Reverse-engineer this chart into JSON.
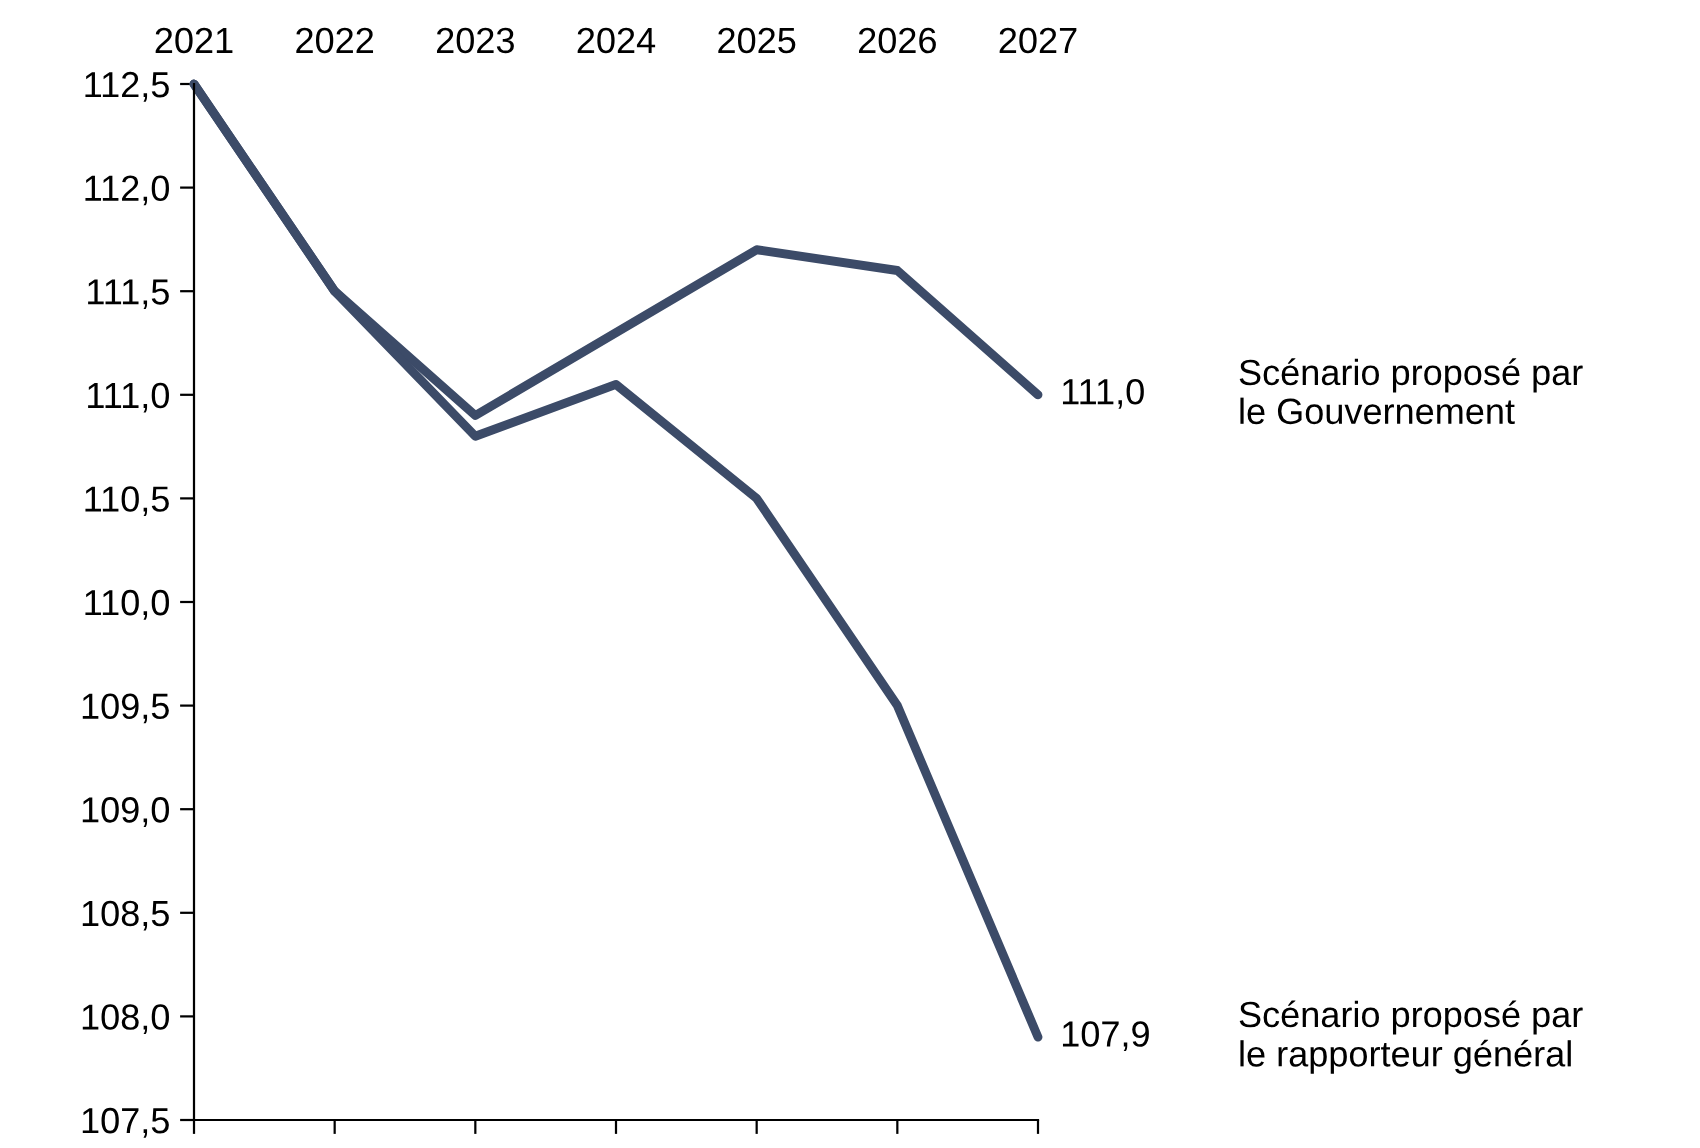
{
  "chart_data": {
    "type": "line",
    "categories": [
      "2021",
      "2022",
      "2023",
      "2024",
      "2025",
      "2026",
      "2027"
    ],
    "series": [
      {
        "name": "Scénario proposé par\nle Gouvernement",
        "color": "#3c4b68",
        "values": [
          112.5,
          111.5,
          110.9,
          111.3,
          111.7,
          111.6,
          111.0
        ],
        "value_labels": [
          null,
          null,
          null,
          null,
          null,
          null,
          "111,0"
        ]
      },
      {
        "name": "Scénario proposé par\nle rapporteur général",
        "color": "#3c4b68",
        "values": [
          112.5,
          111.5,
          110.8,
          111.05,
          110.5,
          109.5,
          107.9
        ],
        "value_labels": [
          null,
          null,
          null,
          null,
          null,
          null,
          "107,9"
        ]
      }
    ],
    "ylim": [
      107.5,
      112.5
    ],
    "yticks": [
      {
        "value": 107.5,
        "label": "107,5"
      },
      {
        "value": 108.0,
        "label": "108,0"
      },
      {
        "value": 108.5,
        "label": "108,5"
      },
      {
        "value": 109.0,
        "label": "109,0"
      },
      {
        "value": 109.5,
        "label": "109,5"
      },
      {
        "value": 110.0,
        "label": "110,0"
      },
      {
        "value": 110.5,
        "label": "110,5"
      },
      {
        "value": 111.0,
        "label": "111,0"
      },
      {
        "value": 111.5,
        "label": "111,5"
      },
      {
        "value": 112.0,
        "label": "112,0"
      },
      {
        "value": 112.5,
        "label": "112,5"
      }
    ],
    "grid": false,
    "legend": false,
    "line_style": "solid",
    "marker": "none"
  }
}
